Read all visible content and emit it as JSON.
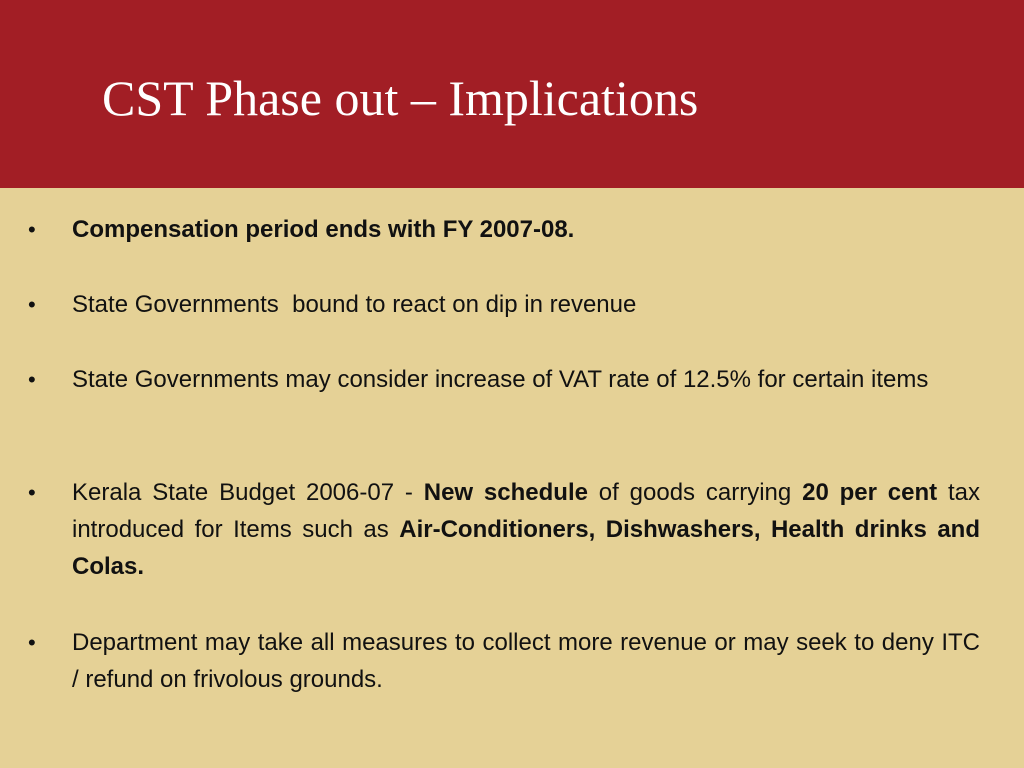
{
  "slide": {
    "title": "CST Phase out – Implications",
    "bullet_glyph": "•",
    "colors": {
      "header": "#a21e25",
      "background": "#e5d196",
      "title_text": "#ffffff",
      "body_text": "#111111"
    },
    "bullets": [
      {
        "segments": [
          {
            "text": "Compensation period ends with FY 2007-08.",
            "bold": true
          }
        ]
      },
      {
        "segments": [
          {
            "text": "State Governments  bound to react on dip in revenue",
            "bold": false
          }
        ]
      },
      {
        "segments": [
          {
            "text": "State Governments may consider increase of VAT rate of 12.5% for certain items",
            "bold": false
          }
        ]
      },
      {
        "segments": [
          {
            "text": "Kerala State Budget 2006-07 - ",
            "bold": false
          },
          {
            "text": "New schedule",
            "bold": true
          },
          {
            "text": " of goods carrying ",
            "bold": false
          },
          {
            "text": "20 per cent",
            "bold": true
          },
          {
            "text": " tax introduced for Items such as ",
            "bold": false
          },
          {
            "text": "Air-Conditioners, Dishwashers, Health drinks and Colas.",
            "bold": true
          }
        ]
      },
      {
        "segments": [
          {
            "text": "Department may take all measures to collect more revenue or may seek to deny ITC / refund on frivolous grounds.",
            "bold": false
          }
        ]
      }
    ]
  }
}
